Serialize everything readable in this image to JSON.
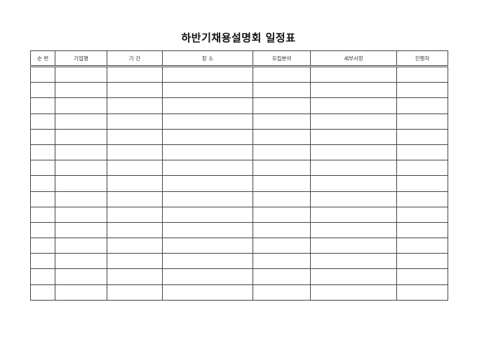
{
  "title": "하반기채용설명회 일정표",
  "columns": [
    "순  번",
    "기업명",
    "기  간",
    "장  소",
    "모집분야",
    "세부사항",
    "진행자"
  ],
  "row_count": 15
}
